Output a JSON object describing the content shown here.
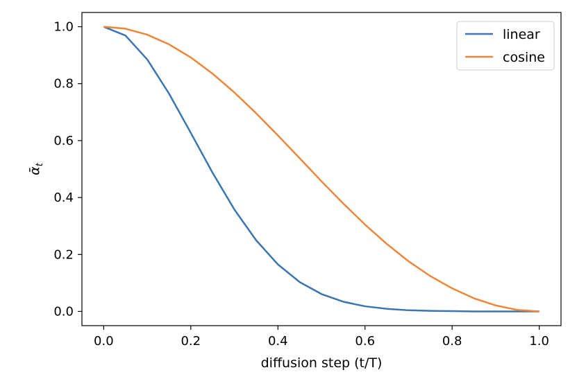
{
  "chart_data": {
    "type": "line",
    "xlabel": "diffusion step (t/T)",
    "ylabel": "ᾱ",
    "ylabel_subscript": "t",
    "xlim": [
      -0.05,
      1.05
    ],
    "ylim": [
      -0.05,
      1.05
    ],
    "xticks": [
      0.0,
      0.2,
      0.4,
      0.6,
      0.8,
      1.0
    ],
    "xtick_labels": [
      "0.0",
      "0.2",
      "0.4",
      "0.6",
      "0.8",
      "1.0"
    ],
    "yticks": [
      0.0,
      0.2,
      0.4,
      0.6,
      0.8,
      1.0
    ],
    "ytick_labels": [
      "0.0",
      "0.2",
      "0.4",
      "0.6",
      "0.8",
      "1.0"
    ],
    "grid": false,
    "legend_position": "top-right",
    "x": [
      0.0,
      0.05,
      0.1,
      0.15,
      0.2,
      0.25,
      0.3,
      0.35,
      0.4,
      0.45,
      0.5,
      0.55,
      0.6,
      0.65,
      0.7,
      0.75,
      0.8,
      0.85,
      0.9,
      0.95,
      1.0
    ],
    "series": [
      {
        "name": "linear",
        "color": "#3a75af",
        "values": [
          1.0,
          0.969,
          0.885,
          0.765,
          0.627,
          0.487,
          0.358,
          0.25,
          0.165,
          0.103,
          0.061,
          0.034,
          0.018,
          0.009,
          0.004,
          0.002,
          0.001,
          0.0,
          0.0,
          0.0,
          0.0
        ]
      },
      {
        "name": "cosine",
        "color": "#ef8536",
        "values": [
          1.0,
          0.993,
          0.972,
          0.938,
          0.892,
          0.835,
          0.769,
          0.696,
          0.618,
          0.538,
          0.457,
          0.379,
          0.305,
          0.237,
          0.176,
          0.124,
          0.081,
          0.046,
          0.021,
          0.005,
          0.0
        ]
      }
    ]
  }
}
